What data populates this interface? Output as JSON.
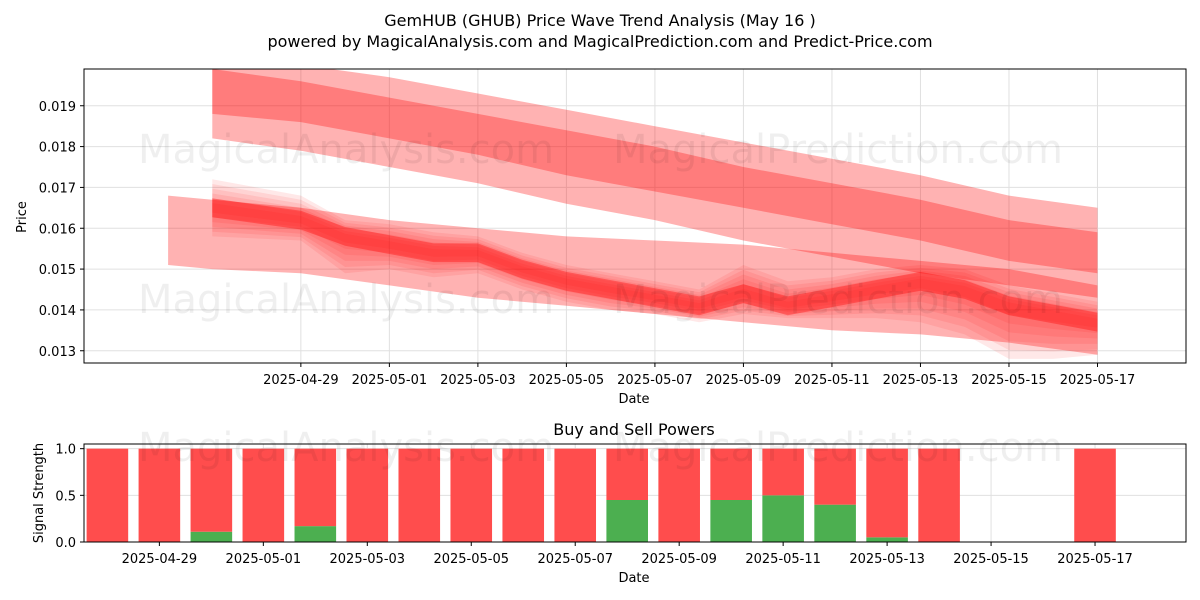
{
  "title_line1": "GemHUB (GHUB) Price Wave Trend Analysis (May 16 )",
  "title_line2": "powered by MagicalAnalysis.com and MagicalPrediction.com and Predict-Price.com",
  "watermarks": [
    "MagicalAnalysis.com",
    "MagicalPrediction.com"
  ],
  "colors": {
    "red": "#ff0000",
    "sell": "#ff4d4d",
    "buy": "#4caf50",
    "grid": "#e0e0e0"
  },
  "chart_data": [
    {
      "type": "area",
      "xlabel": "Date",
      "ylabel": "Price",
      "ylim": [
        0.0127,
        0.0199
      ],
      "x_ticks": [
        "2025-04-29",
        "2025-05-01",
        "2025-05-03",
        "2025-05-05",
        "2025-05-07",
        "2025-05-09",
        "2025-05-11",
        "2025-05-13",
        "2025-05-15",
        "2025-05-17"
      ],
      "y_ticks": [
        0.013,
        0.014,
        0.015,
        0.016,
        0.017,
        0.018,
        0.019
      ],
      "grid": true,
      "series": [
        {
          "x": [
            "2025-04-27",
            "2025-04-29",
            "2025-05-01",
            "2025-05-03",
            "2025-05-05",
            "2025-05-07",
            "2025-05-09",
            "2025-05-11",
            "2025-05-13",
            "2025-05-15",
            "2025-05-17"
          ],
          "outer_upper": [
            0.0201,
            0.02,
            0.0197,
            0.0193,
            0.0189,
            0.0185,
            0.0181,
            0.0177,
            0.0173,
            0.0168,
            0.0165
          ],
          "outer_lower": [
            0.0182,
            0.0179,
            0.0175,
            0.0171,
            0.0166,
            0.0162,
            0.0157,
            0.0153,
            0.0149,
            0.0146,
            0.0143
          ],
          "inner_upper": [
            0.0199,
            0.0196,
            0.0192,
            0.0188,
            0.0184,
            0.018,
            0.0175,
            0.0171,
            0.0167,
            0.0162,
            0.0159
          ],
          "inner_lower": [
            0.0188,
            0.0186,
            0.0182,
            0.0178,
            0.0173,
            0.0169,
            0.0165,
            0.0161,
            0.0157,
            0.0152,
            0.0149
          ]
        },
        {
          "x": [
            "2025-04-26",
            "2025-04-27",
            "2025-04-29",
            "2025-05-01",
            "2025-05-03",
            "2025-05-05",
            "2025-05-07",
            "2025-05-09",
            "2025-05-11",
            "2025-05-13",
            "2025-05-15",
            "2025-05-17"
          ],
          "outer_upper": [
            0.0168,
            0.0167,
            0.0165,
            0.0162,
            0.016,
            0.0158,
            0.0157,
            0.0156,
            0.0154,
            0.0152,
            0.015,
            0.0146
          ],
          "outer_lower": [
            0.0151,
            0.015,
            0.0149,
            0.0146,
            0.0143,
            0.0141,
            0.0139,
            0.0137,
            0.0135,
            0.0134,
            0.0132,
            0.0129
          ]
        },
        {
          "x": [
            "2025-04-27",
            "2025-04-29",
            "2025-04-30",
            "2025-05-01",
            "2025-05-02",
            "2025-05-03",
            "2025-05-04",
            "2025-05-05",
            "2025-05-06",
            "2025-05-07",
            "2025-05-08",
            "2025-05-09",
            "2025-05-10",
            "2025-05-11",
            "2025-05-12",
            "2025-05-13",
            "2025-05-14",
            "2025-05-15",
            "2025-05-16",
            "2025-05-17"
          ],
          "center": [
            0.0165,
            0.0162,
            0.0158,
            0.0156,
            0.0154,
            0.0154,
            0.015,
            0.0147,
            0.0145,
            0.0143,
            0.0141,
            0.0144,
            0.0141,
            0.0143,
            0.0145,
            0.0147,
            0.0145,
            0.0141,
            0.0139,
            0.0137
          ],
          "spread_upper": [
            0.0172,
            0.0168,
            0.0162,
            0.0161,
            0.0159,
            0.0158,
            0.0154,
            0.0151,
            0.0149,
            0.0147,
            0.0145,
            0.0151,
            0.0147,
            0.0148,
            0.015,
            0.0151,
            0.015,
            0.0146,
            0.0144,
            0.0142
          ],
          "spread_lower": [
            0.0158,
            0.0157,
            0.0149,
            0.015,
            0.0148,
            0.0149,
            0.0145,
            0.0142,
            0.014,
            0.0139,
            0.0137,
            0.0139,
            0.0138,
            0.0138,
            0.0138,
            0.0137,
            0.0134,
            0.0128,
            0.0128,
            0.0129
          ]
        }
      ]
    },
    {
      "type": "bar",
      "title": "Buy and Sell Powers",
      "xlabel": "Date",
      "ylabel": "Signal Strength",
      "ylim": [
        0,
        1.05
      ],
      "y_ticks": [
        0.0,
        0.5,
        1.0
      ],
      "x_ticks": [
        "2025-04-29",
        "2025-05-01",
        "2025-05-03",
        "2025-05-05",
        "2025-05-07",
        "2025-05-09",
        "2025-05-11",
        "2025-05-13",
        "2025-05-15",
        "2025-05-17"
      ],
      "grid": true,
      "categories": [
        "2025-04-28",
        "2025-04-29",
        "2025-04-30",
        "2025-05-01",
        "2025-05-02",
        "2025-05-03",
        "2025-05-04",
        "2025-05-05",
        "2025-05-06",
        "2025-05-07",
        "2025-05-08",
        "2025-05-09",
        "2025-05-10",
        "2025-05-11",
        "2025-05-12",
        "2025-05-13",
        "2025-05-14",
        "2025-05-15",
        "2025-05-16",
        "2025-05-17"
      ],
      "series": [
        {
          "values": [
            0,
            0,
            0.11,
            0,
            0.17,
            0,
            0,
            0,
            0,
            0,
            0.45,
            0,
            0.45,
            0.5,
            0.4,
            0.05,
            0,
            null,
            null,
            0
          ]
        },
        {
          "values": [
            1,
            1,
            0.89,
            1,
            0.83,
            1,
            1,
            1,
            1,
            1,
            0.55,
            1,
            0.55,
            0.5,
            0.6,
            0.95,
            1,
            null,
            null,
            1
          ]
        }
      ]
    }
  ]
}
